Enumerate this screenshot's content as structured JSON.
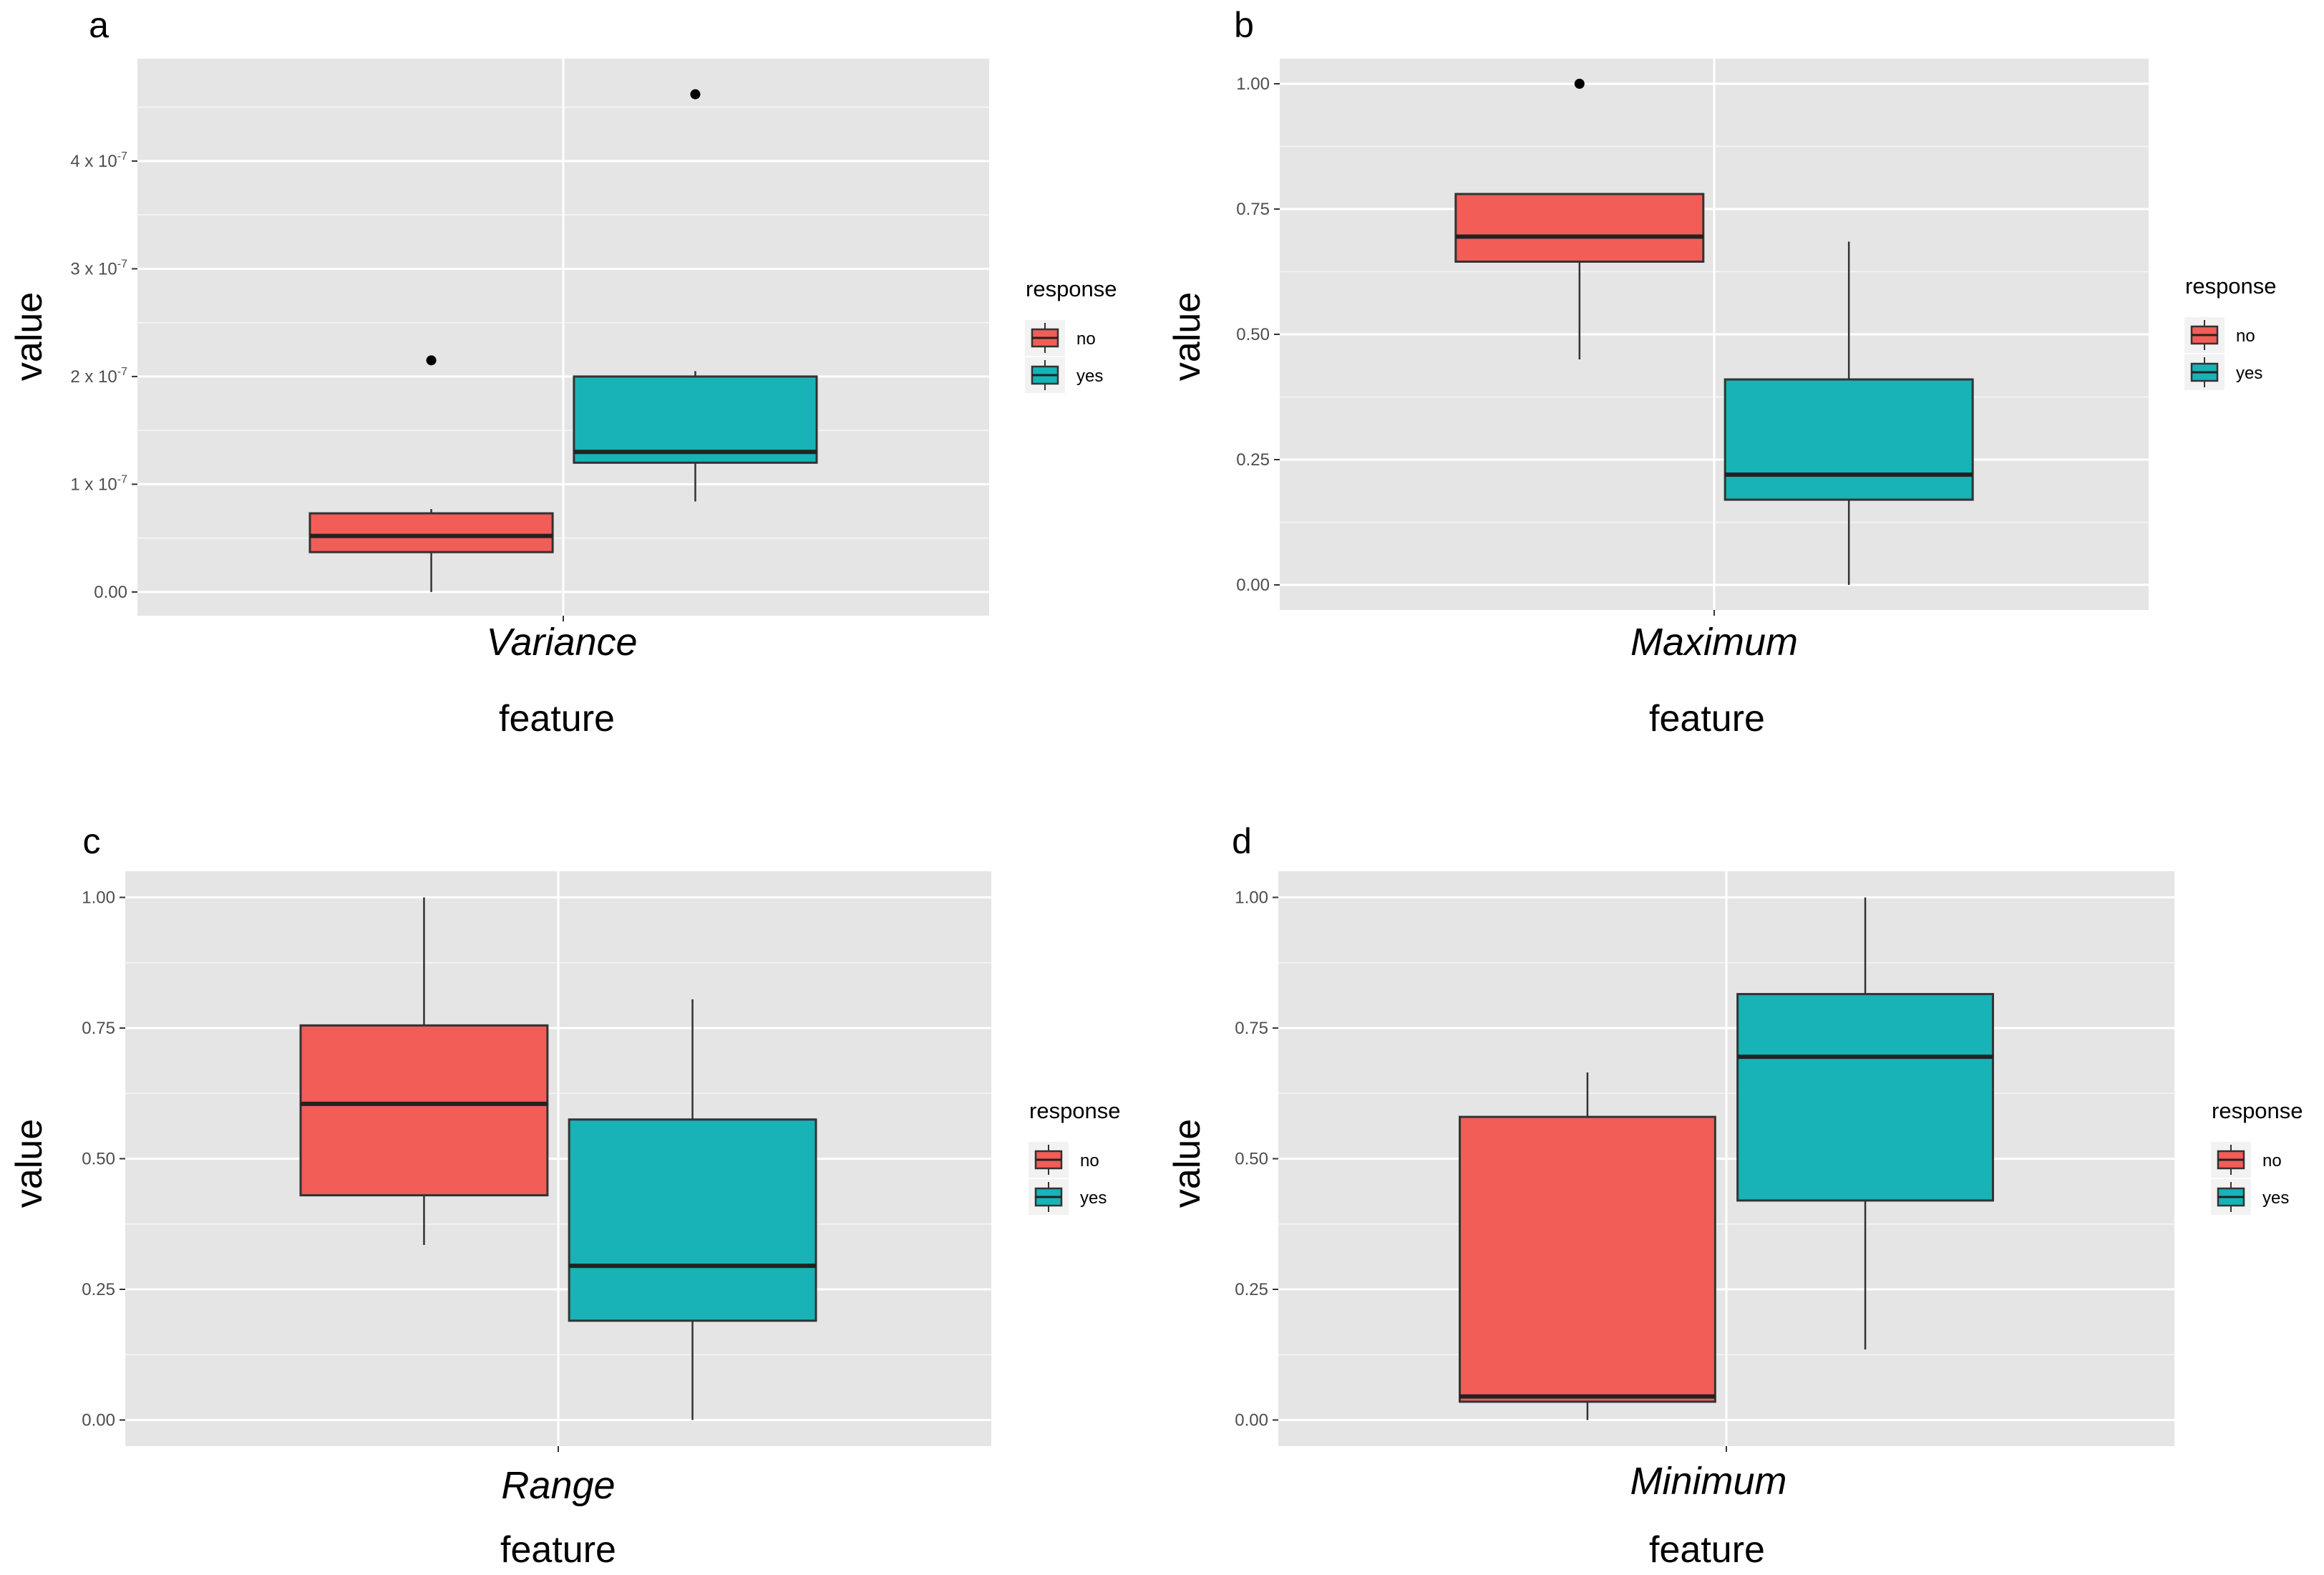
{
  "figure": {
    "colors": {
      "panel_bg": "#e5e5e5",
      "grid": "#ffffff",
      "no": "#f25d58",
      "yes": "#17b3b6",
      "outline": "#333333"
    },
    "legend": {
      "title": "response",
      "items": [
        {
          "label": "no",
          "color": "#f25d58"
        },
        {
          "label": "yes",
          "color": "#17b3b6"
        }
      ]
    }
  },
  "chart_data": [
    {
      "type": "box",
      "panel": "a",
      "feature": "Variance",
      "xlabel": "feature",
      "ylabel": "value",
      "ylim": [
        -2.2e-08,
        4.95e-07
      ],
      "yticks": [
        {
          "value": 0,
          "label": "0.00"
        },
        {
          "value": 1e-07,
          "label": "1 x 10",
          "exp": "-7"
        },
        {
          "value": 2e-07,
          "label": "2 x 10",
          "exp": "-7"
        },
        {
          "value": 3e-07,
          "label": "3 x 10",
          "exp": "-7"
        },
        {
          "value": 4e-07,
          "label": "4 x 10",
          "exp": "-7"
        }
      ],
      "series": [
        {
          "name": "no",
          "min": 0.0,
          "q1": 3.7e-08,
          "median": 5.2e-08,
          "q3": 7.3e-08,
          "max": 7.7e-08,
          "outliers": [
            2.15e-07
          ]
        },
        {
          "name": "yes",
          "min": 8.4e-08,
          "q1": 1.2e-07,
          "median": 1.3e-07,
          "q3": 2e-07,
          "max": 2.05e-07,
          "outliers": [
            4.62e-07
          ]
        }
      ]
    },
    {
      "type": "box",
      "panel": "b",
      "feature": "Maximum",
      "xlabel": "feature",
      "ylabel": "value",
      "ylim": [
        -0.05,
        1.05
      ],
      "yticks": [
        {
          "value": 0,
          "label": "0.00"
        },
        {
          "value": 0.25,
          "label": "0.25"
        },
        {
          "value": 0.5,
          "label": "0.50"
        },
        {
          "value": 0.75,
          "label": "0.75"
        },
        {
          "value": 1.0,
          "label": "1.00"
        }
      ],
      "series": [
        {
          "name": "no",
          "min": 0.45,
          "q1": 0.645,
          "median": 0.695,
          "q3": 0.78,
          "max": 0.78,
          "outliers": [
            1.0
          ]
        },
        {
          "name": "yes",
          "min": 0.0,
          "q1": 0.17,
          "median": 0.22,
          "q3": 0.41,
          "max": 0.685,
          "outliers": []
        }
      ]
    },
    {
      "type": "box",
      "panel": "c",
      "feature": "Range",
      "xlabel": "feature",
      "ylabel": "value",
      "ylim": [
        -0.05,
        1.05
      ],
      "yticks": [
        {
          "value": 0,
          "label": "0.00"
        },
        {
          "value": 0.25,
          "label": "0.25"
        },
        {
          "value": 0.5,
          "label": "0.50"
        },
        {
          "value": 0.75,
          "label": "0.75"
        },
        {
          "value": 1.0,
          "label": "1.00"
        }
      ],
      "series": [
        {
          "name": "no",
          "min": 0.335,
          "q1": 0.43,
          "median": 0.605,
          "q3": 0.755,
          "max": 1.0,
          "outliers": []
        },
        {
          "name": "yes",
          "min": 0.0,
          "q1": 0.19,
          "median": 0.295,
          "q3": 0.575,
          "max": 0.805,
          "outliers": []
        }
      ]
    },
    {
      "type": "box",
      "panel": "d",
      "feature": "Minimum",
      "xlabel": "feature",
      "ylabel": "value",
      "ylim": [
        -0.05,
        1.05
      ],
      "yticks": [
        {
          "value": 0,
          "label": "0.00"
        },
        {
          "value": 0.25,
          "label": "0.25"
        },
        {
          "value": 0.5,
          "label": "0.50"
        },
        {
          "value": 0.75,
          "label": "0.75"
        },
        {
          "value": 1.0,
          "label": "1.00"
        }
      ],
      "series": [
        {
          "name": "no",
          "min": 0.0,
          "q1": 0.035,
          "median": 0.045,
          "q3": 0.58,
          "max": 0.665,
          "outliers": []
        },
        {
          "name": "yes",
          "min": 0.135,
          "q1": 0.42,
          "median": 0.695,
          "q3": 0.815,
          "max": 1.0,
          "outliers": []
        }
      ]
    }
  ]
}
